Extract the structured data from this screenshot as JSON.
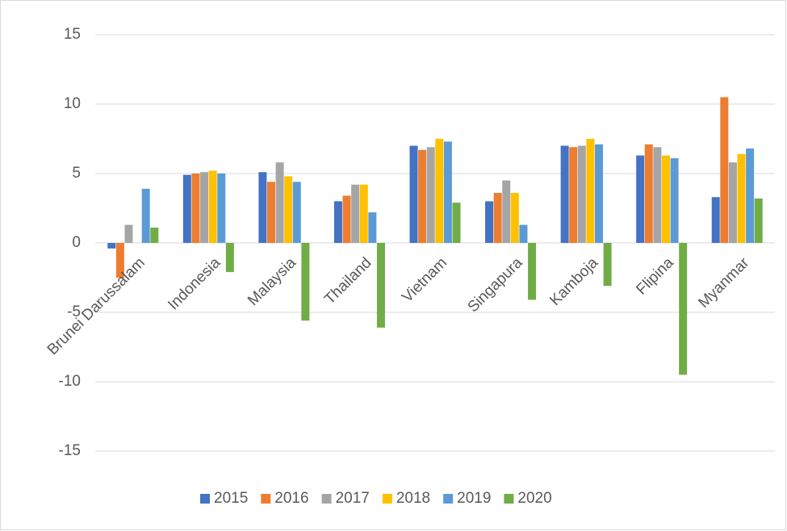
{
  "chart_data": {
    "type": "bar",
    "categories": [
      "Brunei Darussalam",
      "Indonesia",
      "Malaysia",
      "Thailand",
      "Vietnam",
      "Singapura",
      "Kamboja",
      "Flipina",
      "Myanmar"
    ],
    "series": [
      {
        "name": "2015",
        "color": "#4472c4",
        "values": [
          -0.4,
          4.9,
          5.1,
          3.0,
          7.0,
          3.0,
          7.0,
          6.3,
          3.3
        ]
      },
      {
        "name": "2016",
        "color": "#ed7d31",
        "values": [
          -2.5,
          5.0,
          4.4,
          3.4,
          6.7,
          3.6,
          6.9,
          7.1,
          10.5
        ]
      },
      {
        "name": "2017",
        "color": "#a5a5a5",
        "values": [
          1.3,
          5.1,
          5.8,
          4.2,
          6.9,
          4.5,
          7.0,
          6.9,
          5.8
        ]
      },
      {
        "name": "2018",
        "color": "#ffc000",
        "values": [
          0,
          5.2,
          4.8,
          4.2,
          7.5,
          3.6,
          7.5,
          6.3,
          6.4
        ]
      },
      {
        "name": "2019",
        "color": "#5b9bd5",
        "values": [
          3.9,
          5.0,
          4.4,
          2.2,
          7.3,
          1.3,
          7.1,
          6.1,
          6.8
        ]
      },
      {
        "name": "2020",
        "color": "#70ad47",
        "values": [
          1.1,
          -2.1,
          -5.6,
          -6.1,
          2.9,
          -4.1,
          -3.1,
          -9.5,
          3.2
        ]
      }
    ],
    "ylim": [
      -15,
      15
    ],
    "yticks": [
      -15,
      -10,
      -5,
      0,
      5,
      10,
      15
    ],
    "grid": true,
    "legend": "bottom"
  }
}
